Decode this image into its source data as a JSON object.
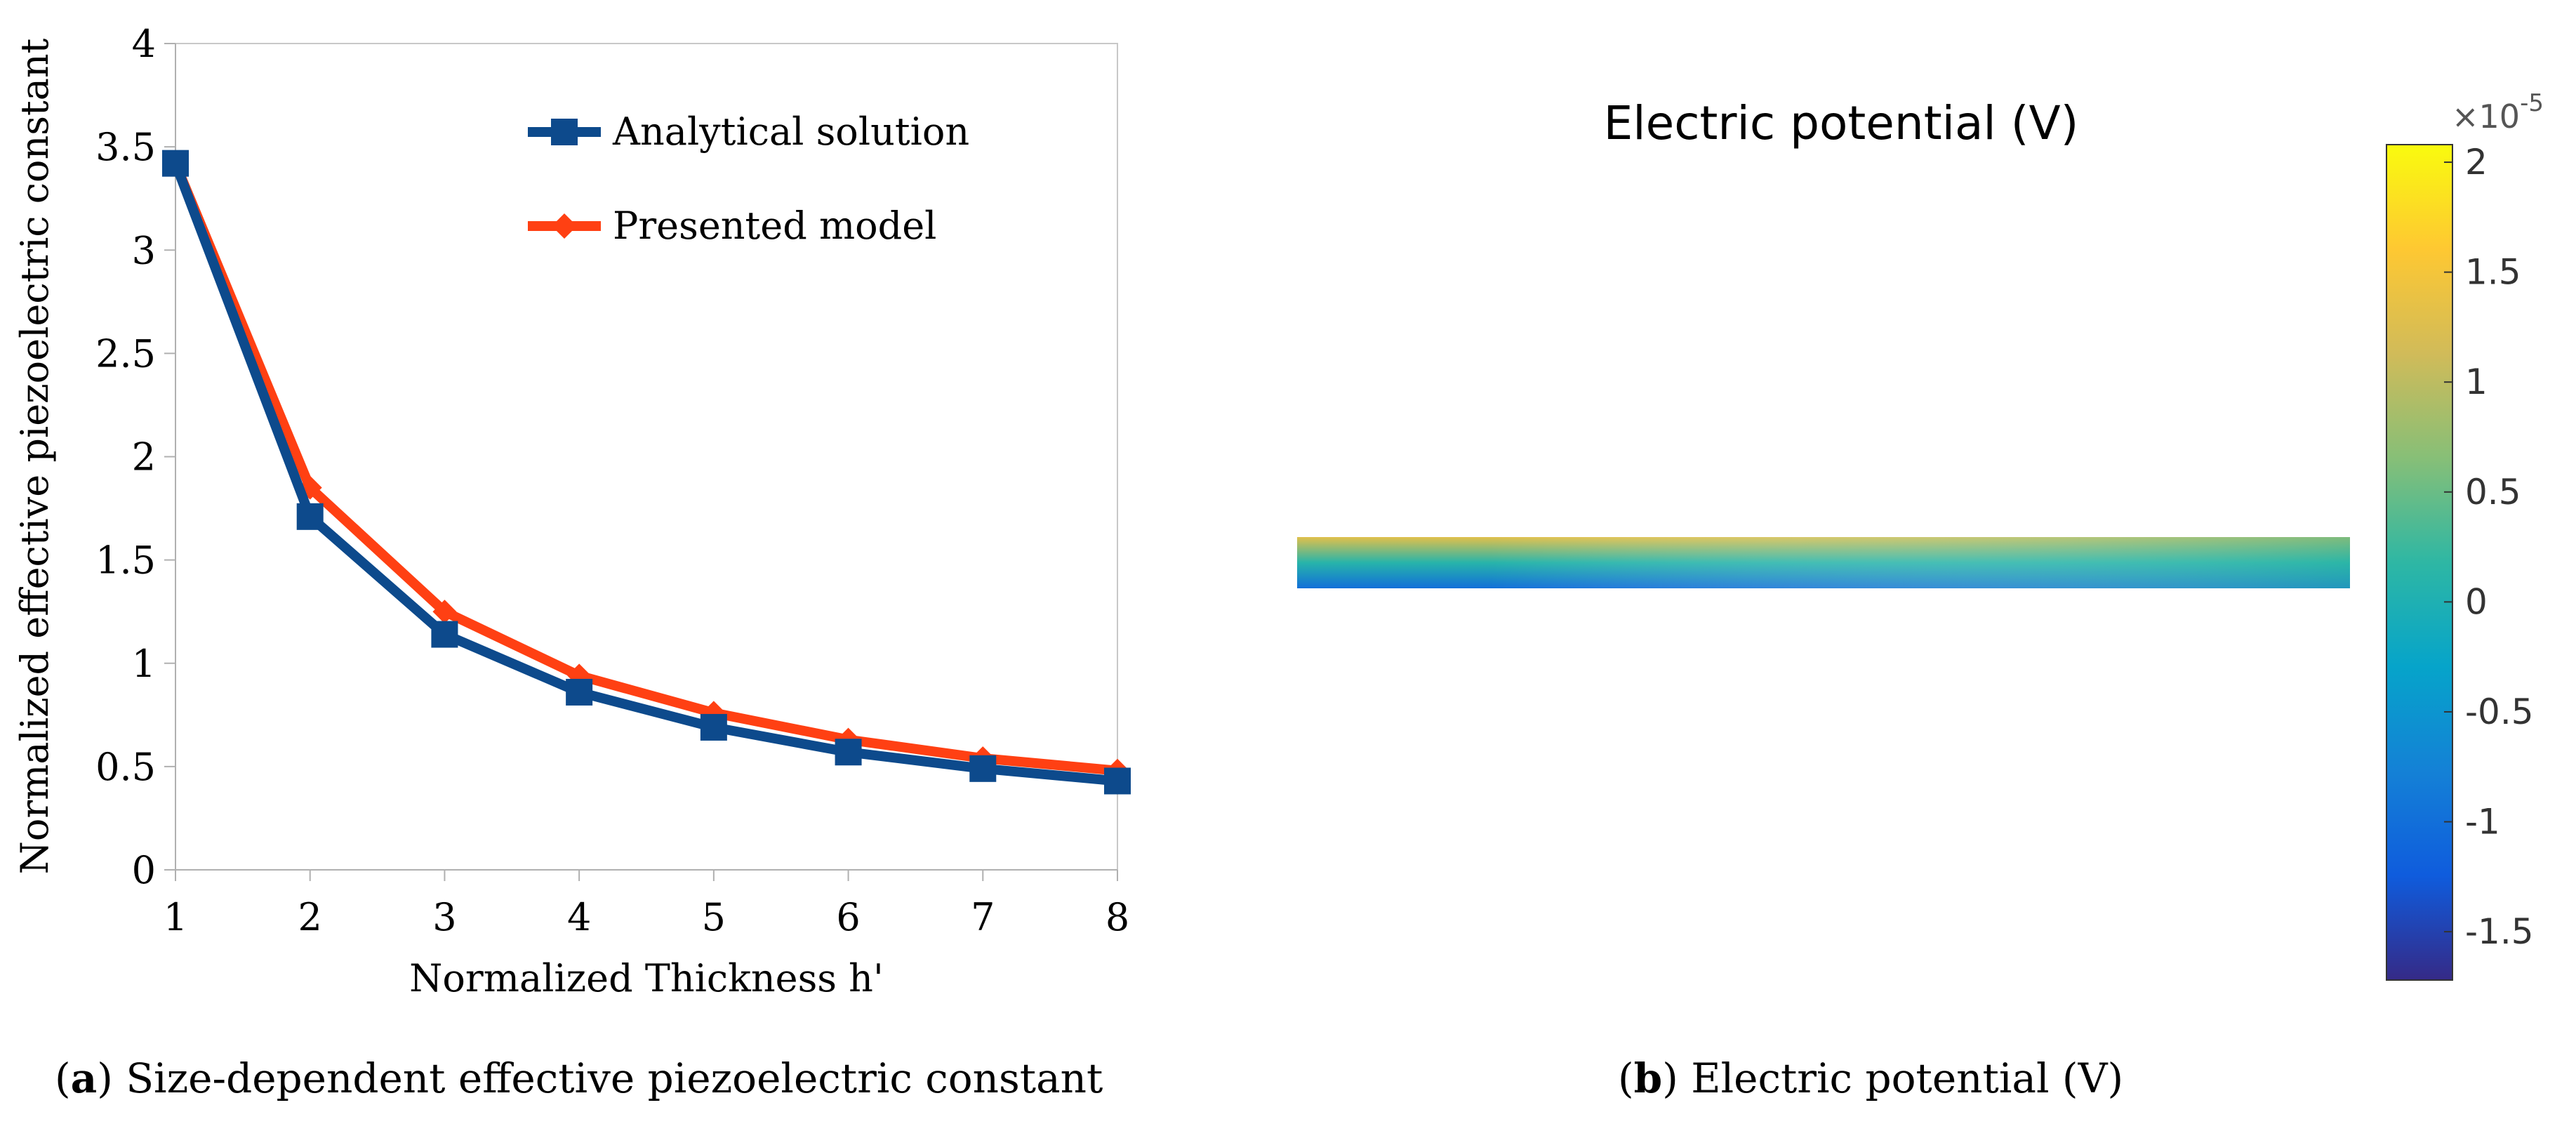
{
  "figure": {
    "panel_a": {
      "caption_letter": "a",
      "caption_text": "Size-dependent effective piezoelectric constant"
    },
    "panel_b": {
      "caption_letter": "b",
      "caption_text": "Electric potential (V)"
    }
  },
  "chart_data": [
    {
      "type": "line",
      "title": "",
      "xlabel": "Normalized Thickness h'",
      "ylabel": "Normalized effective piezoelectric constant",
      "x": [
        1,
        2,
        3,
        4,
        5,
        6,
        7,
        8
      ],
      "xlim": [
        1,
        8
      ],
      "ylim": [
        0,
        4
      ],
      "xticks": [
        "1",
        "2",
        "3",
        "4",
        "5",
        "6",
        "7",
        "8"
      ],
      "yticks": [
        "0",
        "0.5",
        "1",
        "1.5",
        "2",
        "2.5",
        "3",
        "3.5",
        "4"
      ],
      "grid": false,
      "legend_position": "top-right",
      "series": [
        {
          "name": "Analytical solution",
          "color": "#0d4a8c",
          "marker": "square",
          "values": [
            3.42,
            1.71,
            1.14,
            0.86,
            0.69,
            0.57,
            0.49,
            0.43
          ]
        },
        {
          "name": "Presented model",
          "color": "#ff4013",
          "marker": "diamond",
          "values": [
            3.42,
            1.85,
            1.25,
            0.94,
            0.76,
            0.63,
            0.54,
            0.48
          ]
        }
      ]
    },
    {
      "type": "heatmap",
      "title": "Electric potential (V)",
      "colorbar": {
        "exponent_label": "×10",
        "exponent_power": "-5",
        "range": [
          -1.72,
          2.08
        ],
        "ticks": [
          -1.5,
          -1,
          -0.5,
          0,
          0.5,
          1,
          1.5,
          2
        ],
        "tick_labels": [
          "-1.5",
          "-1",
          "-0.5",
          "0",
          "0.5",
          "1",
          "1.5",
          "2"
        ],
        "colormap": "parula",
        "colormap_stops": [
          "#352a87",
          "#0f5cdd",
          "#1481d6",
          "#06a4ca",
          "#2eb7a4",
          "#87bf77",
          "#d1bb59",
          "#fec832",
          "#f9fb0e"
        ]
      },
      "field": {
        "description_values": {
          "top_edge_value": 1.3,
          "bottom_edge_value": -1.0,
          "interior_value": 0.1
        }
      }
    }
  ]
}
